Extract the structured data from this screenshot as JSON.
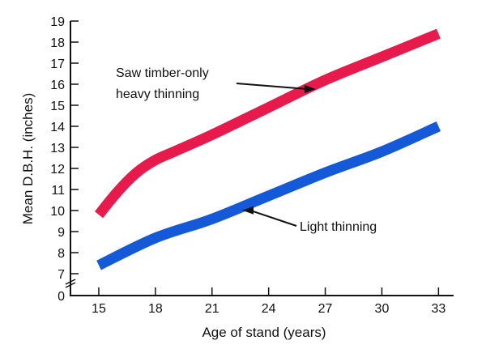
{
  "chart_data": {
    "type": "line",
    "title": "",
    "xlabel": "Age of stand (years)",
    "ylabel": "Mean D.B.H. (inches)",
    "xlim": [
      13.5,
      33.8
    ],
    "ylim": [
      0,
      19
    ],
    "xticks": [
      15,
      18,
      21,
      24,
      27,
      30,
      33
    ],
    "yticks": [
      0,
      7,
      8,
      9,
      10,
      11,
      12,
      13,
      14,
      15,
      16,
      17,
      18,
      19
    ],
    "grid": false,
    "legend": "none",
    "series": [
      {
        "color": "#e8194b",
        "x": [
          15,
          16,
          17,
          18,
          19,
          21,
          24,
          27,
          30,
          33
        ],
        "y": [
          9.8,
          10.9,
          11.8,
          12.4,
          12.8,
          13.6,
          14.9,
          16.2,
          17.3,
          18.4
        ]
      },
      {
        "color": "#1459d8",
        "x": [
          15,
          18,
          21,
          24,
          27,
          30,
          33
        ],
        "y": [
          7.4,
          8.7,
          9.6,
          10.7,
          11.8,
          12.8,
          14.0
        ]
      }
    ],
    "annotations": [
      {
        "lines": [
          "Saw timber-only",
          "heavy thinning"
        ],
        "series": 0,
        "arrow_to": [
          26.5,
          16.0
        ]
      },
      {
        "lines": [
          "Light thinning"
        ],
        "series": 1,
        "arrow_to": [
          22.6,
          10.2
        ]
      }
    ]
  }
}
